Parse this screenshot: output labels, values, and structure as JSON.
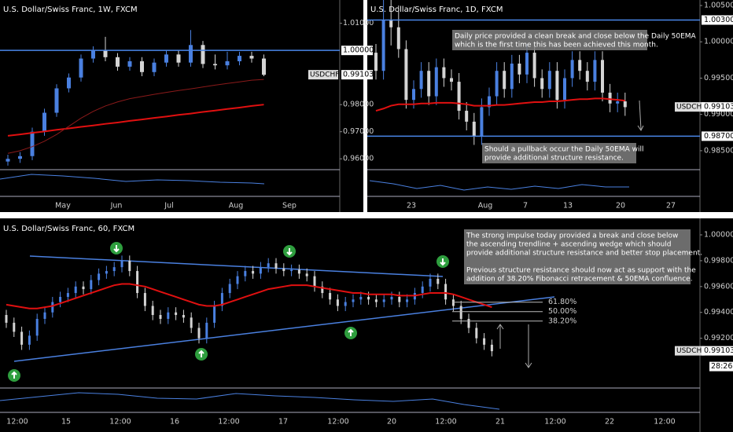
{
  "chart_data": [
    {
      "type": "candlestick",
      "title": "U.S. Dollar/Swiss Franc, 1W, FXCM",
      "xlabels": [
        "May",
        "Jun",
        "Jul",
        "Aug",
        "Sep"
      ],
      "open": [
        0.959,
        0.96,
        0.961,
        0.97,
        0.977,
        0.986,
        0.99,
        0.997,
        1.0,
        0.9975,
        0.994,
        0.996,
        0.992,
        0.9955,
        0.9985,
        0.9955,
        1.002,
        0.995,
        0.9945,
        0.996,
        0.998,
        0.997
      ],
      "high": [
        0.9615,
        0.9625,
        0.9715,
        0.9785,
        0.9875,
        0.9915,
        0.9985,
        1.0015,
        1.005,
        0.999,
        0.9975,
        0.9975,
        0.997,
        1.0,
        1.0,
        1.0075,
        1.0035,
        0.9985,
        0.9995,
        0.9995,
        0.9995,
        0.9985
      ],
      "low": [
        0.9575,
        0.9585,
        0.9595,
        0.9685,
        0.9755,
        0.9845,
        0.9885,
        0.9955,
        0.996,
        0.9925,
        0.9925,
        0.9905,
        0.9905,
        0.994,
        0.994,
        0.994,
        0.9935,
        0.993,
        0.993,
        0.9945,
        0.9955,
        0.9905
      ],
      "close": [
        0.96,
        0.961,
        0.97,
        0.977,
        0.986,
        0.99,
        0.997,
        1.0,
        0.9975,
        0.994,
        0.996,
        0.992,
        0.9955,
        0.9985,
        0.9955,
        1.002,
        0.995,
        0.9945,
        0.996,
        0.998,
        0.997,
        0.991
      ],
      "up_color": "#4a80e0",
      "down_color": "#d4d4d4",
      "ema": [
        {
          "color": "#e01010",
          "values": [
            0.9685,
            0.969,
            0.9696,
            0.9701,
            0.9707,
            0.9712,
            0.9718,
            0.9723,
            0.9729,
            0.9734,
            0.974,
            0.9745,
            0.9751,
            0.9756,
            0.9762,
            0.9767,
            0.9773,
            0.9778,
            0.9784,
            0.9789,
            0.9795,
            0.98
          ]
        },
        {
          "color": "#8b1a1a",
          "values": [
            0.962,
            0.963,
            0.9645,
            0.9665,
            0.969,
            0.972,
            0.975,
            0.9775,
            0.9795,
            0.981,
            0.9822,
            0.983,
            0.9838,
            0.9845,
            0.9852,
            0.9858,
            0.9865,
            0.9872,
            0.9878,
            0.9884,
            0.989,
            0.9893
          ]
        }
      ],
      "ylim": [
        0.956,
        1.0186
      ],
      "yticks": [
        {
          "value": 1.01,
          "label": "1.01000"
        },
        {
          "value": 0.98,
          "label": "0.98000"
        },
        {
          "value": 0.97,
          "label": "0.97000"
        },
        {
          "value": 0.96,
          "label": "0.96000"
        }
      ],
      "levels": [
        {
          "value": 1.0,
          "label": "1.00000"
        }
      ],
      "last": {
        "symbol": "USDCHF",
        "value": 0.99103,
        "label": "0.99103"
      }
    },
    {
      "type": "candlestick",
      "title": "U.S. Dollar/Swiss Franc, 1D, FXCM",
      "xlabels": [
        "23",
        "Aug",
        "7",
        "13",
        "20",
        "27"
      ],
      "open": [
        0.9985,
        0.996,
        1.003,
        1.002,
        0.999,
        0.992,
        0.9935,
        0.996,
        0.9925,
        0.9965,
        0.995,
        0.9945,
        0.9905,
        0.989,
        0.987,
        0.991,
        0.9925,
        0.996,
        0.9935,
        0.997,
        0.9955,
        0.9985,
        0.995,
        0.9935,
        0.996,
        0.992,
        0.995,
        0.9975,
        0.996,
        0.9945,
        0.9975,
        0.993,
        0.9915,
        0.9918
      ],
      "high": [
        0.9997,
        1.006,
        1.006,
        1.005,
        1.0002,
        0.9947,
        0.9972,
        0.9972,
        0.9977,
        0.9977,
        0.9962,
        0.9957,
        0.9917,
        0.9902,
        0.9922,
        0.9937,
        0.9972,
        0.9972,
        0.9982,
        0.9982,
        0.9997,
        0.9997,
        0.9962,
        0.9972,
        0.9972,
        0.9962,
        0.9987,
        0.9987,
        0.9972,
        0.9987,
        0.9987,
        0.9942,
        0.993,
        0.993
      ],
      "low": [
        0.9948,
        0.9948,
        0.9995,
        0.9978,
        0.9908,
        0.9908,
        0.9923,
        0.9913,
        0.9913,
        0.9938,
        0.9933,
        0.9893,
        0.9878,
        0.9858,
        0.9858,
        0.9898,
        0.9913,
        0.9923,
        0.9923,
        0.9943,
        0.9943,
        0.9938,
        0.9923,
        0.9923,
        0.9908,
        0.9908,
        0.9938,
        0.9948,
        0.9933,
        0.9933,
        0.9918,
        0.9903,
        0.9903,
        0.9898
      ],
      "close": [
        0.996,
        1.003,
        1.002,
        0.999,
        0.992,
        0.9935,
        0.996,
        0.9925,
        0.9965,
        0.995,
        0.9945,
        0.9905,
        0.989,
        0.987,
        0.991,
        0.9925,
        0.996,
        0.9935,
        0.997,
        0.9955,
        0.9985,
        0.995,
        0.9935,
        0.996,
        0.992,
        0.995,
        0.9975,
        0.996,
        0.9945,
        0.9975,
        0.993,
        0.9915,
        0.9918,
        0.991
      ],
      "up_color": "#4a80e0",
      "down_color": "#d4d4d4",
      "ema": [
        {
          "color": "#e01010",
          "values": [
            0.9905,
            0.9908,
            0.9912,
            0.9914,
            0.9914,
            0.9914,
            0.9915,
            0.9915,
            0.9916,
            0.9916,
            0.9916,
            0.9915,
            0.9914,
            0.9912,
            0.9912,
            0.9912,
            0.9913,
            0.9913,
            0.9914,
            0.9915,
            0.9916,
            0.9917,
            0.9917,
            0.9918,
            0.9918,
            0.9919,
            0.992,
            0.9921,
            0.9921,
            0.9922,
            0.9922,
            0.9921,
            0.992,
            0.9919
          ]
        }
      ],
      "ylim": [
        0.98239,
        1.00576
      ],
      "yticks": [
        {
          "value": 1.005,
          "label": "1.00500"
        },
        {
          "value": 1.0,
          "label": "1.00000"
        },
        {
          "value": 0.995,
          "label": "0.99500"
        },
        {
          "value": 0.99,
          "label": "0.99000"
        },
        {
          "value": 0.985,
          "label": "0.98500"
        }
      ],
      "levels": [
        {
          "value": 1.003,
          "label": "1.00300"
        },
        {
          "value": 0.987,
          "label": "0.98700"
        }
      ],
      "last": {
        "symbol": "USDCHF",
        "value": 0.99103,
        "label": "0.99103"
      },
      "annotations": [
        {
          "lines": [
            "Daily price provided a clean break and close below the Daily 50EMA",
            "which is the first time this has been achieved this month."
          ]
        },
        {
          "lines": [
            "Should a pullback occur the Daily 50EMA will",
            "provide additional structure resistance."
          ]
        }
      ]
    },
    {
      "type": "candlestick",
      "title": "U.S. Dollar/Swiss Franc, 60, FXCM",
      "xlabels": [
        "12:00",
        "15",
        "12:00",
        "16",
        "12:00",
        "17",
        "12:00",
        "20",
        "12:00",
        "21",
        "12:00",
        "22",
        "12:00"
      ],
      "open": [
        0.9938,
        0.9932,
        0.9925,
        0.9915,
        0.9922,
        0.9935,
        0.994,
        0.9948,
        0.9952,
        0.9955,
        0.996,
        0.9958,
        0.9965,
        0.997,
        0.9972,
        0.9975,
        0.998,
        0.9972,
        0.9955,
        0.9945,
        0.9938,
        0.9935,
        0.994,
        0.9938,
        0.9936,
        0.9928,
        0.992,
        0.9932,
        0.9945,
        0.9955,
        0.9962,
        0.9968,
        0.9972,
        0.997,
        0.9975,
        0.9978,
        0.9974,
        0.9972,
        0.9973,
        0.997,
        0.9968,
        0.996,
        0.9955,
        0.995,
        0.9945,
        0.9948,
        0.995,
        0.9952,
        0.995,
        0.9948,
        0.995,
        0.9952,
        0.9948,
        0.995,
        0.9955,
        0.996,
        0.9966,
        0.9962,
        0.995,
        0.9945,
        0.9935,
        0.9928,
        0.992,
        0.9915
      ],
      "high": [
        0.9942,
        0.9936,
        0.9929,
        0.9926,
        0.9939,
        0.9944,
        0.9952,
        0.9956,
        0.9959,
        0.9964,
        0.9964,
        0.9969,
        0.9974,
        0.9976,
        0.9979,
        0.9984,
        0.9984,
        0.9976,
        0.9959,
        0.9949,
        0.9942,
        0.9944,
        0.9944,
        0.9942,
        0.994,
        0.9932,
        0.9936,
        0.9949,
        0.9959,
        0.9966,
        0.9972,
        0.9976,
        0.9976,
        0.9979,
        0.9982,
        0.9982,
        0.9978,
        0.9977,
        0.9977,
        0.9974,
        0.9972,
        0.9964,
        0.9959,
        0.9954,
        0.9952,
        0.9954,
        0.9956,
        0.9956,
        0.9954,
        0.9954,
        0.9956,
        0.9956,
        0.9954,
        0.9959,
        0.9964,
        0.997,
        0.997,
        0.9966,
        0.9954,
        0.9949,
        0.9939,
        0.9932,
        0.9924,
        0.9919
      ],
      "low": [
        0.9928,
        0.9921,
        0.9911,
        0.9911,
        0.9918,
        0.9931,
        0.9936,
        0.9944,
        0.9948,
        0.9951,
        0.9954,
        0.9954,
        0.9961,
        0.9966,
        0.9968,
        0.9971,
        0.9968,
        0.9951,
        0.9941,
        0.9934,
        0.9931,
        0.9931,
        0.9934,
        0.9932,
        0.9924,
        0.9916,
        0.9916,
        0.9928,
        0.9941,
        0.9951,
        0.9958,
        0.9964,
        0.9966,
        0.9966,
        0.9971,
        0.997,
        0.9968,
        0.9968,
        0.9966,
        0.9964,
        0.9956,
        0.9951,
        0.9946,
        0.9941,
        0.9941,
        0.9944,
        0.9946,
        0.9946,
        0.9944,
        0.9944,
        0.9946,
        0.9944,
        0.9944,
        0.9946,
        0.9951,
        0.9956,
        0.9958,
        0.9946,
        0.9941,
        0.9931,
        0.9924,
        0.9916,
        0.9911,
        0.9906
      ],
      "close": [
        0.9932,
        0.9925,
        0.9915,
        0.9922,
        0.9935,
        0.994,
        0.9948,
        0.9952,
        0.9955,
        0.996,
        0.9958,
        0.9965,
        0.997,
        0.9972,
        0.9975,
        0.998,
        0.9972,
        0.9955,
        0.9945,
        0.9938,
        0.9935,
        0.994,
        0.9938,
        0.9936,
        0.9928,
        0.992,
        0.9932,
        0.9945,
        0.9955,
        0.9962,
        0.9968,
        0.9972,
        0.997,
        0.9975,
        0.9978,
        0.9974,
        0.9972,
        0.9973,
        0.997,
        0.9968,
        0.996,
        0.9955,
        0.995,
        0.9945,
        0.9948,
        0.995,
        0.9952,
        0.995,
        0.9948,
        0.995,
        0.9952,
        0.9948,
        0.995,
        0.9955,
        0.996,
        0.9966,
        0.9962,
        0.995,
        0.9945,
        0.9935,
        0.9928,
        0.992,
        0.9915,
        0.991
      ],
      "up_color": "#4a80e0",
      "down_color": "#d4d4d4",
      "ema": [
        {
          "color": "#e01010",
          "values": [
            0.9946,
            0.9945,
            0.9944,
            0.9943,
            0.9943,
            0.9944,
            0.9945,
            0.9947,
            0.9949,
            0.9951,
            0.9953,
            0.9955,
            0.9957,
            0.9959,
            0.9961,
            0.9962,
            0.9962,
            0.9961,
            0.996,
            0.9958,
            0.9956,
            0.9954,
            0.9952,
            0.995,
            0.9948,
            0.9946,
            0.9945,
            0.9945,
            0.9946,
            0.9948,
            0.995,
            0.9952,
            0.9954,
            0.9956,
            0.9958,
            0.9959,
            0.996,
            0.9961,
            0.9961,
            0.9961,
            0.996,
            0.9959,
            0.9958,
            0.9957,
            0.9956,
            0.9955,
            0.9955,
            0.9954,
            0.9954,
            0.9954,
            0.9954,
            0.9953,
            0.9953,
            0.9953,
            0.9954,
            0.9955,
            0.9955,
            0.9955,
            0.9954,
            0.9952,
            0.995,
            0.9948,
            0.9946,
            0.9944
          ]
        }
      ],
      "ylim": [
        0.98809,
        1.00085
      ],
      "yticks": [
        {
          "value": 1.0,
          "label": "1.00000"
        },
        {
          "value": 0.998,
          "label": "0.99800"
        },
        {
          "value": 0.996,
          "label": "0.99600"
        },
        {
          "value": 0.994,
          "label": "0.99400"
        },
        {
          "value": 0.992,
          "label": "0.99200"
        }
      ],
      "levels": [],
      "last": {
        "symbol": "USDCHF",
        "value": 0.99103,
        "label": "0.99103",
        "countdown": "28:26"
      },
      "fib": [
        {
          "value": 0.99479,
          "label": "61.80%"
        },
        {
          "value": 0.99406,
          "label": "50.00%"
        },
        {
          "value": 0.99333,
          "label": "38.20%"
        }
      ],
      "annotations": [
        {
          "lines": [
            "The strong impulse today provided a break and close below",
            "the ascending trendline + ascending wedge which should",
            "provide additional structure resistance and better stop placement.",
            "",
            "Previous structure resistance should now act as support with the",
            "addition of 38.20% Fibonacci retracement & 50EMA confluence."
          ]
        }
      ]
    }
  ]
}
